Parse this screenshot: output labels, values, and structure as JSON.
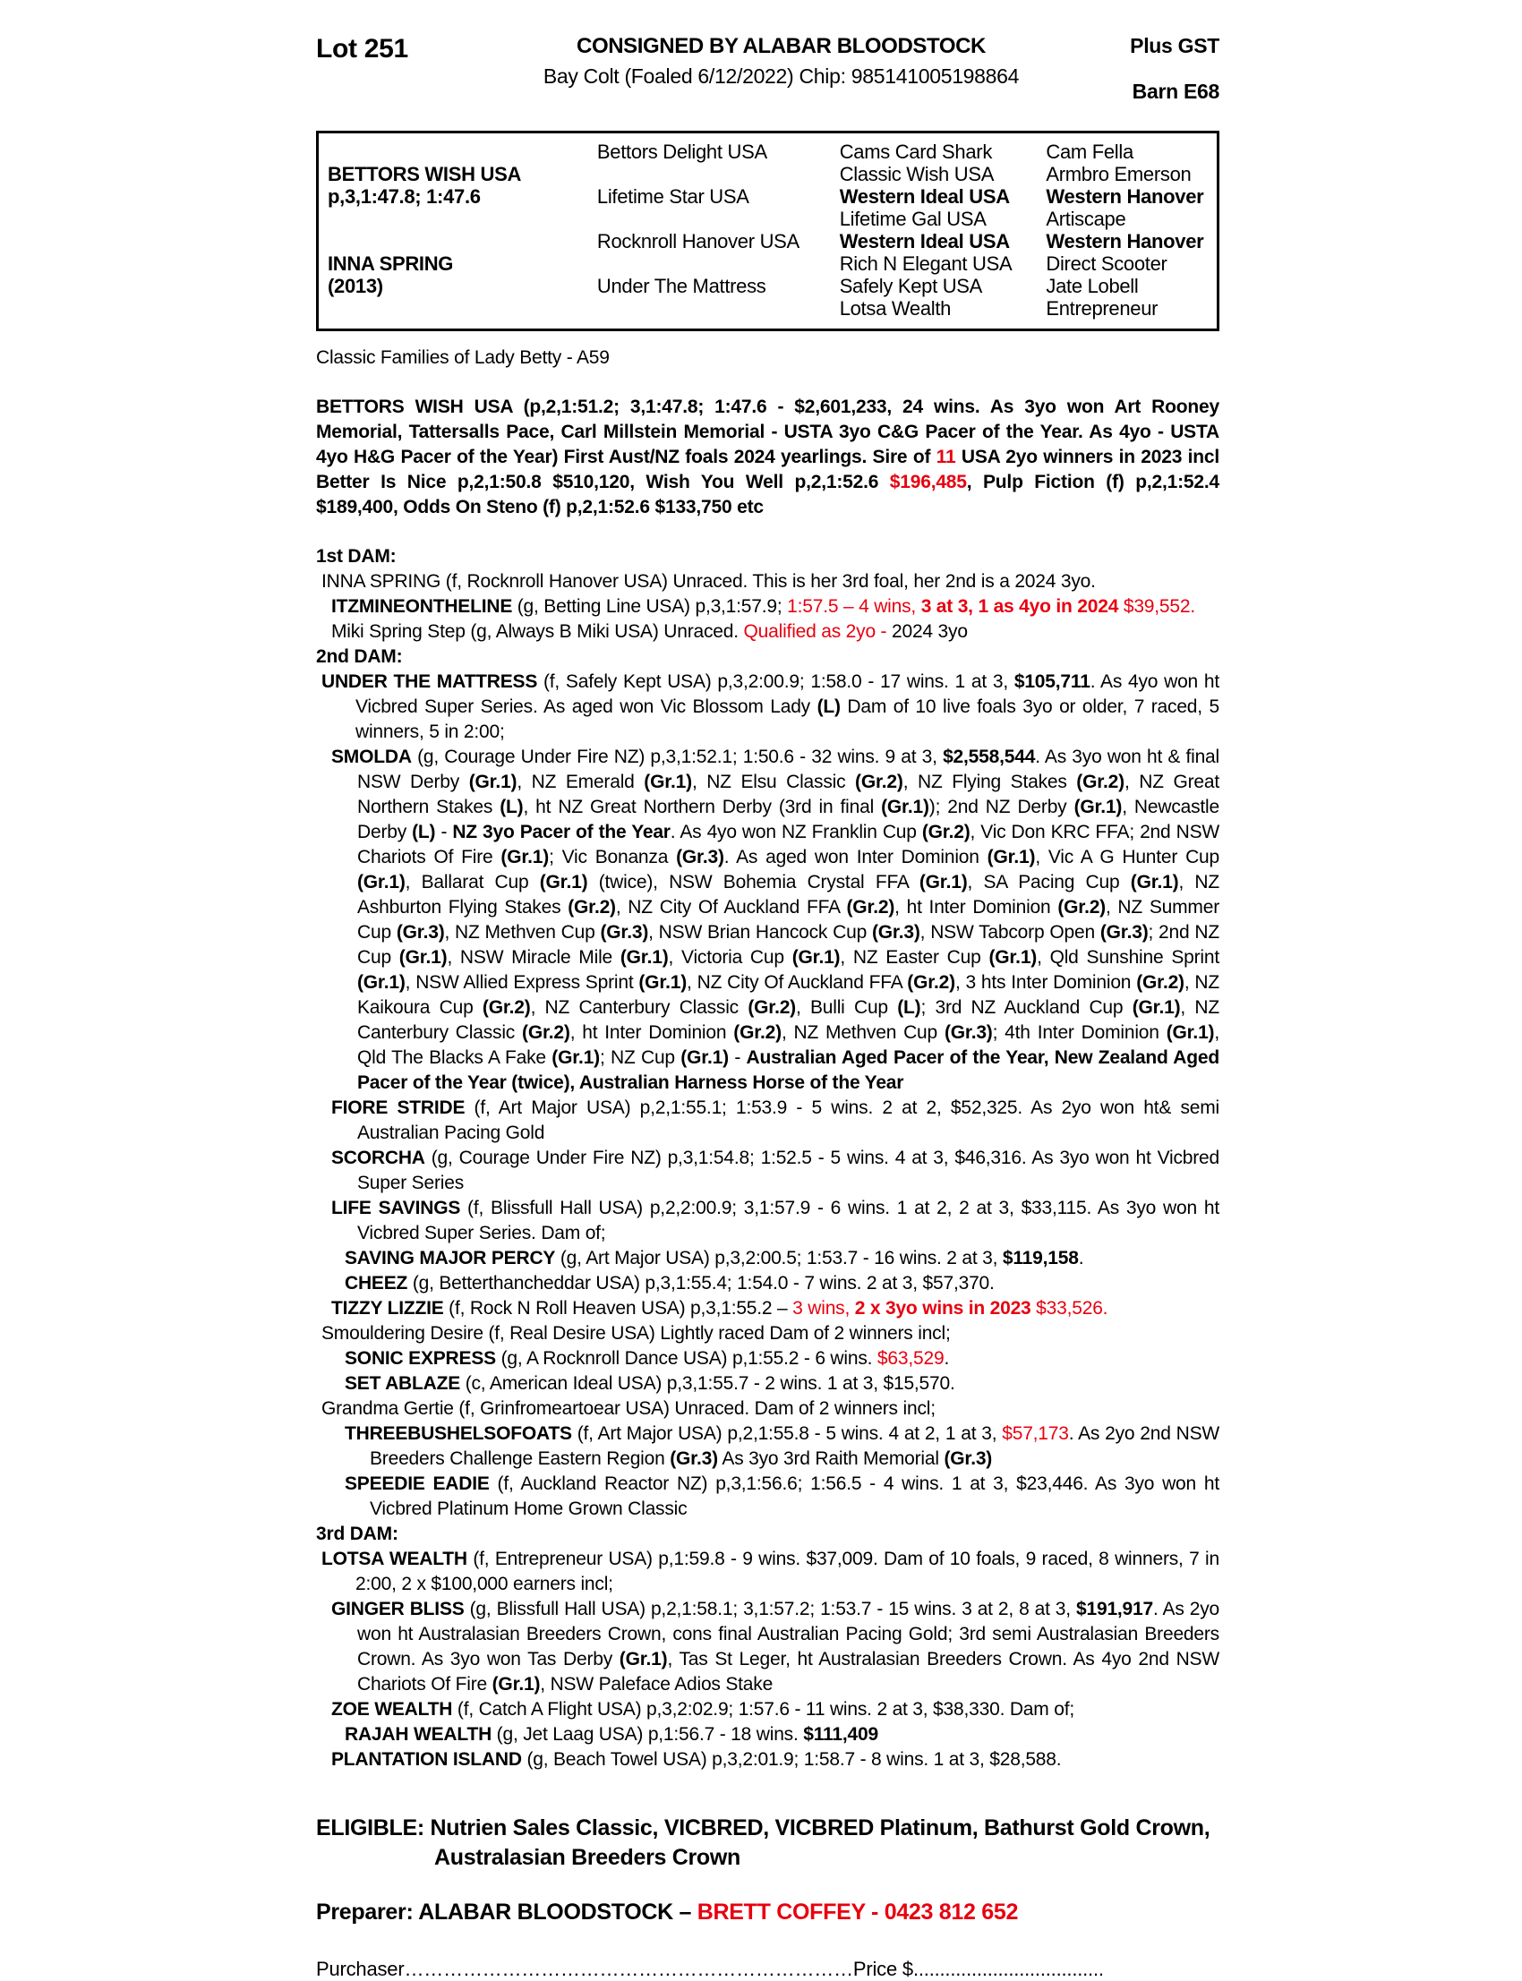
{
  "header": {
    "lot": "Lot 251",
    "consigned": "CONSIGNED BY ALABAR BLOODSTOCK",
    "subtitle": "Bay Colt (Foaled  6/12/2022) Chip: 985141005198864",
    "plus_gst": "Plus GST",
    "barn": "Barn E68"
  },
  "pedigree_table": {
    "rows": [
      [
        {
          "t": ""
        },
        {
          "t": "Bettors Delight USA"
        },
        {
          "t": "Cams Card Shark"
        },
        {
          "t": "Cam Fella"
        }
      ],
      [
        {
          "t": "BETTORS WISH USA",
          "b": true
        },
        {
          "t": ""
        },
        {
          "t": "Classic Wish USA"
        },
        {
          "t": "Armbro Emerson"
        }
      ],
      [
        {
          "t": "p,3,1:47.8; 1:47.6",
          "b": true
        },
        {
          "t": "Lifetime Star USA"
        },
        {
          "t": "Western Ideal USA",
          "b": true
        },
        {
          "t": "Western Hanover",
          "b": true
        }
      ],
      [
        {
          "t": ""
        },
        {
          "t": ""
        },
        {
          "t": "Lifetime Gal USA"
        },
        {
          "t": "Artiscape"
        }
      ],
      [
        {
          "t": ""
        },
        {
          "t": "Rocknroll Hanover USA"
        },
        {
          "t": "Western Ideal USA",
          "b": true
        },
        {
          "t": "Western Hanover",
          "b": true
        }
      ],
      [
        {
          "t": "INNA SPRING",
          "b": true
        },
        {
          "t": ""
        },
        {
          "t": "Rich N Elegant USA"
        },
        {
          "t": "Direct Scooter"
        }
      ],
      [
        {
          "t": "(2013)",
          "b": true
        },
        {
          "t": "Under The Mattress"
        },
        {
          "t": "Safely Kept USA"
        },
        {
          "t": "Jate Lobell"
        }
      ],
      [
        {
          "t": ""
        },
        {
          "t": ""
        },
        {
          "t": "Lotsa Wealth"
        },
        {
          "t": "Entrepreneur"
        }
      ]
    ]
  },
  "body": [
    {
      "style": "fam",
      "text": "Classic Families of Lady Betty - A59"
    },
    {
      "style": "sire",
      "text": "BETTORS WISH USA (p,2,1:51.2; 3,1:47.8; 1:47.6 - $2,601,233, 24 wins. As 3yo won Art Rooney Memorial, Tattersalls Pace, Carl Millstein Memorial - USTA 3yo C&G Pacer of the Year. As 4yo - USTA 4yo H&G Pacer of the Year) First Aust/NZ foals 2024 yearlings. Sire of @@11@@ USA 2yo winners in 2023 incl Better Is Nice p,2,1:50.8 $510,120, Wish You Well p,2,1:52.6 @@$196,485@@, Pulp Fiction (f) p,2,1:52.4 $189,400, Odds On Steno (f) p,2,1:52.6 $133,750 etc"
    },
    {
      "style": "dam-head",
      "text": "1st DAM:"
    },
    {
      "style": "i6",
      "text": "INNA SPRING (f, Rocknroll Hanover USA) Unraced. This is her 3rd foal, her 2nd is a 2024 3yo."
    },
    {
      "style": "i17",
      "text": "**ITZMINEONTHELINE** (g, Betting Line USA) p,3,1:57.9; @@1:57.5 – 4 wins, **3 at 3, 1 as 4yo in 2024** $39,552.@@"
    },
    {
      "style": "i17",
      "text": "Miki Spring Step (g, Always B Miki USA) Unraced. @@Qualified as 2yo -@@ 2024 3yo"
    },
    {
      "style": "dam-head",
      "text": "2nd DAM:"
    },
    {
      "style": "i6",
      "text": "**UNDER THE MATTRESS** (f, Safely Kept USA) p,3,2:00.9; 1:58.0 - 17 wins. 1 at 3, **$105,711**. As 4yo won ht Vicbred Super Series. As aged won Vic Blossom Lady **(L)** Dam of 10 live foals 3yo or older, 7 raced, 5 winners, 5 in 2:00;"
    },
    {
      "style": "i17",
      "text": "**SMOLDA** (g, Courage Under Fire NZ) p,3,1:52.1; 1:50.6 - 32 wins. 9 at 3, **$2,558,544**. As 3yo won ht & final NSW Derby **(Gr.1)**, NZ Emerald **(Gr.1)**, NZ Elsu Classic **(Gr.2)**, NZ Flying Stakes **(Gr.2)**, NZ Great Northern Stakes **(L)**, ht NZ Great Northern Derby (3rd in final **(Gr.1)**); 2nd NZ Derby **(Gr.1)**, Newcastle Derby **(L)** - **NZ 3yo Pacer of the Year**. As 4yo won NZ Franklin Cup **(Gr.2)**, Vic Don KRC FFA; 2nd NSW Chariots Of Fire **(Gr.1)**; Vic Bonanza **(Gr.3)**. As aged won Inter Dominion **(Gr.1)**, Vic A G Hunter Cup **(Gr.1)**, Ballarat Cup **(Gr.1)** (twice), NSW Bohemia Crystal FFA **(Gr.1)**, SA Pacing Cup **(Gr.1)**, NZ Ashburton Flying Stakes **(Gr.2)**, NZ City Of Auckland FFA **(Gr.2)**, ht Inter Dominion **(Gr.2)**, NZ Summer Cup **(Gr.3)**, NZ Methven Cup **(Gr.3)**, NSW Brian Hancock Cup **(Gr.3)**, NSW Tabcorp Open **(Gr.3)**; 2nd NZ Cup **(Gr.1)**, NSW Miracle Mile **(Gr.1)**, Victoria Cup **(Gr.1)**, NZ Easter Cup **(Gr.1)**, Qld Sunshine Sprint **(Gr.1)**, NSW Allied Express Sprint **(Gr.1)**, NZ City Of Auckland FFA **(Gr.2)**, 3 hts Inter Dominion **(Gr.2)**, NZ Kaikoura Cup **(Gr.2)**, NZ Canterbury Classic **(Gr.2)**, Bulli Cup **(L)**; 3rd NZ Auckland Cup **(Gr.1)**, NZ Canterbury Classic **(Gr.2)**, ht Inter Dominion **(Gr.2)**, NZ Methven Cup **(Gr.3)**; 4th Inter Dominion **(Gr.1)**, Qld The Blacks A Fake **(Gr.1)**; NZ Cup **(Gr.1)** - **Australian Aged Pacer of the Year, New Zealand Aged Pacer of the Year (twice), Australian Harness Horse of the Year**"
    },
    {
      "style": "i17",
      "text": "**FIORE STRIDE** (f, Art Major USA) p,2,1:55.1; 1:53.9 - 5 wins. 2 at 2, $52,325. As 2yo won ht& semi Australian Pacing Gold"
    },
    {
      "style": "i17",
      "text": "**SCORCHA** (g, Courage Under Fire NZ) p,3,1:54.8; 1:52.5 - 5 wins. 4 at 3, $46,316. As 3yo won ht Vicbred Super Series"
    },
    {
      "style": "i17",
      "text": "**LIFE SAVINGS** (f, Blissfull Hall USA) p,2,2:00.9; 3,1:57.9 - 6 wins. 1 at 2, 2 at 3, $33,115. As 3yo won ht Vicbred Super Series. Dam of;"
    },
    {
      "style": "i32",
      "text": "**SAVING MAJOR PERCY** (g, Art Major USA) p,3,2:00.5; 1:53.7 - 16 wins. 2 at 3, **$119,158**."
    },
    {
      "style": "i32",
      "text": "**CHEEZ** (g, Betterthancheddar USA) p,3,1:55.4; 1:54.0 - 7 wins. 2 at 3, $57,370."
    },
    {
      "style": "i17",
      "text": "**TIZZY LIZZIE** (f, Rock N Roll Heaven USA) p,3,1:55.2 – @@3 wins, **2 x 3yo wins in 2023** $33,526.@@"
    },
    {
      "style": "i6",
      "text": "Smouldering Desire (f, Real Desire USA) Lightly raced  Dam of 2 winners incl;"
    },
    {
      "style": "i32",
      "text": "**SONIC EXPRESS** (g, A Rocknroll Dance USA) p,1:55.2 - 6 wins. @@$63,529@@."
    },
    {
      "style": "i32",
      "text": "**SET ABLAZE** (c, American Ideal USA) p,3,1:55.7 - 2 wins. 1 at 3, $15,570."
    },
    {
      "style": "i6",
      "text": "Grandma Gertie (f, Grinfromeartoear USA) Unraced. Dam of 2 winners incl;"
    },
    {
      "style": "i32",
      "text": "**THREEBUSHELSOFOATS** (f, Art Major USA) p,2,1:55.8 - 5 wins. 4 at 2, 1 at 3, @@$57,173@@. As 2yo 2nd NSW Breeders Challenge Eastern Region **(Gr.3)** As 3yo 3rd Raith Memorial **(Gr.3)**"
    },
    {
      "style": "i32",
      "text": "**SPEEDIE EADIE** (f, Auckland Reactor NZ) p,3,1:56.6; 1:56.5 - 4 wins. 1 at 3, $23,446. As 3yo won ht Vicbred Platinum Home Grown Classic"
    },
    {
      "style": "dam-head",
      "text": "3rd DAM:"
    },
    {
      "style": "i6",
      "text": "**LOTSA WEALTH** (f, Entrepreneur USA) p,1:59.8 - 9 wins. $37,009. Dam of 10 foals, 9 raced, 8 winners, 7 in 2:00, 2 x $100,000 earners incl;"
    },
    {
      "style": "i17",
      "text": "**GINGER BLISS** (g, Blissfull Hall USA) p,2,1:58.1; 3,1:57.2; 1:53.7 - 15 wins. 3 at 2, 8 at 3, **$191,917**. As 2yo won ht Australasian Breeders Crown, cons final Australian Pacing Gold; 3rd semi Australasian Breeders Crown. As 3yo won Tas Derby **(Gr.1)**, Tas St Leger, ht Australasian Breeders Crown. As 4yo 2nd NSW Chariots Of Fire **(Gr.1)**, NSW Paleface Adios Stake"
    },
    {
      "style": "i17",
      "text": "**ZOE WEALTH** (f, Catch A Flight USA) p,3,2:02.9; 1:57.6 - 11 wins. 2 at 3, $38,330. Dam of;"
    },
    {
      "style": "i32",
      "text": "**RAJAH WEALTH** (g, Jet Laag USA) p,1:56.7 - 18 wins. **$111,409**"
    },
    {
      "style": "i17",
      "text": "**PLANTATION ISLAND** (g, Beach Towel USA) p,3,2:01.9; 1:58.7 - 8 wins. 1 at 3, $28,588."
    }
  ],
  "footer": {
    "eligible": "ELIGIBLE: Nutrien Sales Classic, VICBRED, VICBRED Platinum, Bathurst Gold Crown, Australasian Breeders Crown",
    "preparer": "Preparer: ALABAR BLOODSTOCK – @@BRETT COFFEY - 0423 812 652@@",
    "purchaser_label": "Purchaser",
    "purchaser_dots": "……………………………………………………………",
    "price_label": "Price $",
    "price_dots": "...................................."
  }
}
